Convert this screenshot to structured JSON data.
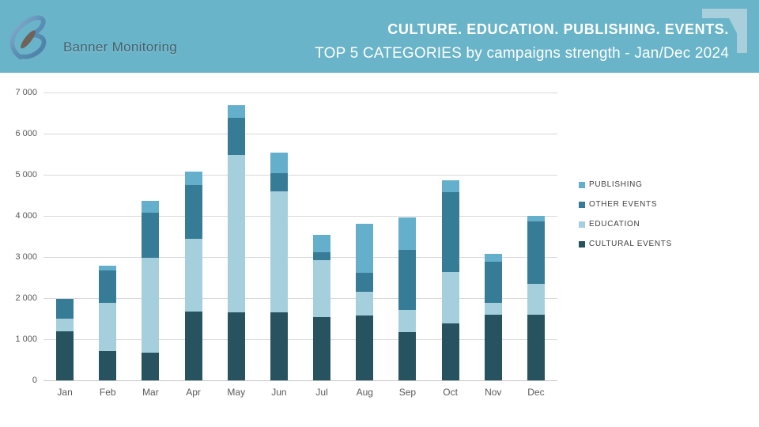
{
  "header": {
    "logo_text": "Banner Monitoring",
    "title": "CULTURE. EDUCATION. PUBLISHING. EVENTS.",
    "subtitle": "TOP 5 CATEGORIES by campaigns strength - Jan/Dec 2024",
    "colors": {
      "band": "#69b4c8",
      "corner_decoration": "#a8cfdb",
      "title_text": "#ffffff"
    }
  },
  "chart_data": {
    "type": "bar",
    "stacked": true,
    "title": "TOP 5 CATEGORIES by campaigns strength - Jan/Dec 2024",
    "xlabel": "",
    "ylabel": "",
    "ylim": [
      0,
      7000
    ],
    "ytick_step": 1000,
    "ytick_labels": [
      "0",
      "1 000",
      "2 000",
      "3 000",
      "4 000",
      "5 000",
      "6 000",
      "7 000"
    ],
    "grid": true,
    "legend_position": "right",
    "legend_order": [
      "PUBLISHING",
      "OTHER EVENTS",
      "EDUCATION",
      "CULTURAL EVENTS"
    ],
    "categories": [
      "Jan",
      "Feb",
      "Mar",
      "Apr",
      "May",
      "Jun",
      "Jul",
      "Aug",
      "Sep",
      "Oct",
      "Nov",
      "Dec"
    ],
    "series": [
      {
        "name": "CULTURAL EVENTS",
        "color": "#26535f",
        "values": [
          1200,
          710,
          670,
          1680,
          1650,
          1650,
          1530,
          1570,
          1170,
          1380,
          1600,
          1600
        ]
      },
      {
        "name": "EDUCATION",
        "color": "#a6cfdd",
        "values": [
          300,
          1180,
          2320,
          1770,
          3840,
          2950,
          1400,
          580,
          540,
          1260,
          280,
          750
        ]
      },
      {
        "name": "OTHER EVENTS",
        "color": "#377c96",
        "values": [
          490,
          780,
          1080,
          1300,
          900,
          430,
          190,
          470,
          1470,
          1930,
          1000,
          1510
        ]
      },
      {
        "name": "PUBLISHING",
        "color": "#64afcb",
        "values": [
          0,
          110,
          290,
          330,
          300,
          510,
          410,
          1180,
          780,
          300,
          190,
          140
        ]
      }
    ],
    "totals": [
      1990,
      2780,
      4360,
      5080,
      6690,
      5540,
      3530,
      3800,
      3960,
      4870,
      3070,
      4000
    ]
  }
}
